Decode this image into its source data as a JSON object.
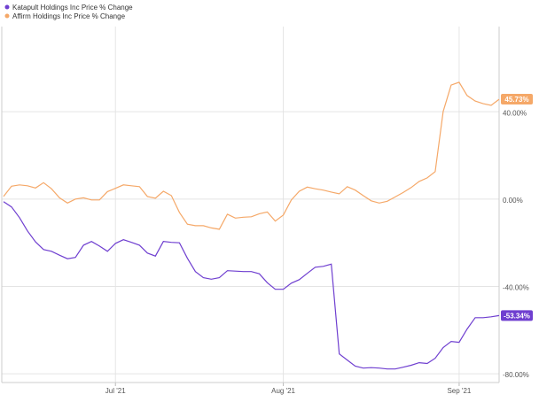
{
  "chart_data": {
    "type": "line",
    "categories": [
      null,
      null,
      null,
      null,
      null,
      null,
      null,
      null,
      null,
      null,
      null,
      null,
      null,
      null,
      "Jul '21",
      null,
      null,
      null,
      null,
      null,
      null,
      null,
      null,
      null,
      null,
      null,
      null,
      null,
      null,
      null,
      null,
      null,
      null,
      null,
      null,
      "Aug '21",
      null,
      null,
      null,
      null,
      null,
      null,
      null,
      null,
      null,
      null,
      null,
      null,
      null,
      null,
      null,
      null,
      null,
      null,
      null,
      null,
      null,
      "Sep '21",
      null,
      null,
      null,
      null,
      null
    ],
    "series": [
      {
        "name": "Katapult Holdings Inc Price % Change",
        "color": "#6f3fd0",
        "values": [
          -1.2,
          -3.6,
          -8.5,
          -14.6,
          -19.6,
          -23.1,
          -23.9,
          -25.7,
          -27.3,
          -26.7,
          -21.1,
          -19.4,
          -21.5,
          -23.9,
          -20.3,
          -18.6,
          -19.8,
          -21.1,
          -24.7,
          -26.1,
          -19.4,
          -19.8,
          -20.0,
          -27.1,
          -33.2,
          -36.0,
          -36.7,
          -36.0,
          -32.8,
          -33.0,
          -33.2,
          -33.2,
          -34.2,
          -38.3,
          -41.3,
          -41.3,
          -38.5,
          -36.9,
          -34.0,
          -31.2,
          -30.8,
          -29.8,
          -70.9,
          -73.7,
          -76.5,
          -77.4,
          -77.2,
          -77.4,
          -77.8,
          -77.8,
          -77.0,
          -76.1,
          -74.9,
          -75.3,
          -72.9,
          -68.0,
          -65.2,
          -65.6,
          -59.5,
          -54.3,
          -54.3,
          -53.9,
          -53.34
        ],
        "value_labels": [
          null,
          null,
          null,
          null,
          null,
          null,
          null,
          null,
          null,
          null,
          null,
          null,
          null,
          null,
          null,
          null,
          null,
          null,
          null,
          null,
          null,
          null,
          null,
          null,
          null,
          null,
          null,
          null,
          null,
          null,
          null,
          null,
          null,
          null,
          null,
          null,
          null,
          null,
          null,
          null,
          null,
          null,
          null,
          null,
          null,
          null,
          null,
          null,
          null,
          null,
          null,
          null,
          null,
          null,
          null,
          null,
          null,
          null,
          null,
          null,
          null,
          null,
          "-53.34%"
        ]
      },
      {
        "name": "Affirm Holdings Inc Price % Change",
        "color": "#f5a868",
        "values": [
          1.2,
          5.9,
          6.5,
          6.1,
          5.1,
          7.5,
          4.7,
          0.6,
          -1.8,
          0,
          0.6,
          -0.4,
          -0.4,
          3.4,
          4.9,
          6.5,
          6.1,
          5.7,
          1.2,
          0.4,
          3.6,
          1.6,
          -6.1,
          -11.5,
          -12.2,
          -12.2,
          -13.2,
          -13.8,
          -6.9,
          -8.7,
          -8.3,
          -8.1,
          -6.7,
          -5.9,
          -10.1,
          -7.3,
          -0.4,
          3.6,
          5.5,
          4.7,
          4.1,
          3.2,
          2.4,
          5.7,
          4.1,
          1.6,
          -0.8,
          -1.8,
          -1.0,
          1.0,
          3.0,
          5.3,
          8.1,
          9.7,
          12.6,
          40.1,
          52.2,
          53.5,
          47.4,
          44.9,
          43.7,
          42.9,
          45.73
        ],
        "value_labels": [
          null,
          null,
          null,
          null,
          null,
          null,
          null,
          null,
          null,
          null,
          null,
          null,
          null,
          null,
          null,
          null,
          null,
          null,
          null,
          null,
          null,
          null,
          null,
          null,
          null,
          null,
          null,
          null,
          null,
          null,
          null,
          null,
          null,
          null,
          null,
          null,
          null,
          null,
          null,
          null,
          null,
          null,
          null,
          null,
          null,
          null,
          null,
          null,
          null,
          null,
          null,
          null,
          null,
          null,
          null,
          null,
          null,
          null,
          null,
          null,
          null,
          null,
          "45.73%"
        ]
      }
    ],
    "ylim": [
      -84,
      79
    ],
    "yticks": [
      {
        "value": 40,
        "label": "40.00%"
      },
      {
        "value": 0,
        "label": "0.00%"
      },
      {
        "value": -40,
        "label": "-40.00%"
      },
      {
        "value": -80,
        "label": "-80.00%"
      }
    ],
    "grid": true
  }
}
